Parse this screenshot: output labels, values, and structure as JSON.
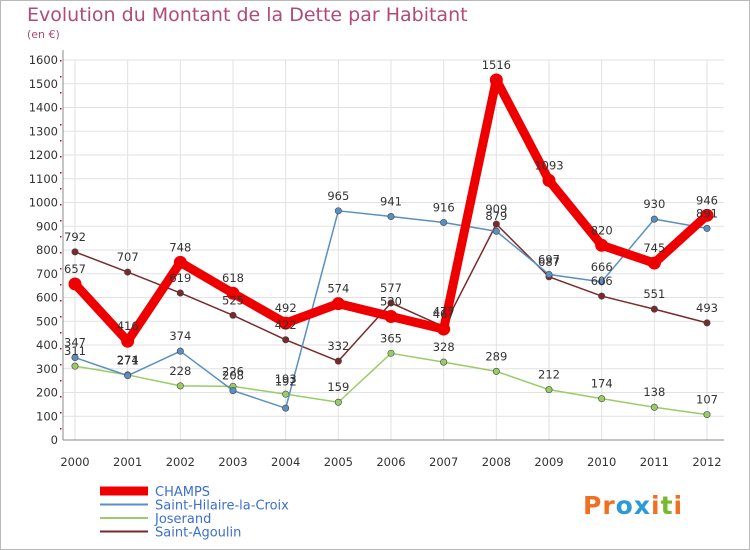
{
  "chart_data": {
    "type": "line",
    "title": "Evolution du Montant de la Dette par Habitant",
    "subtitle": "(en €)",
    "x": [
      "2000",
      "2001",
      "2002",
      "2003",
      "2004",
      "2005",
      "2006",
      "2007",
      "2008",
      "2009",
      "2010",
      "2011",
      "2012"
    ],
    "ylim": [
      0,
      1600
    ],
    "yticks": [
      0,
      100,
      200,
      300,
      400,
      500,
      600,
      700,
      800,
      900,
      1000,
      1100,
      1200,
      1300,
      1400,
      1500,
      1600
    ],
    "series": [
      {
        "name": "Saint-Agoulin",
        "color": "#7a2a2a",
        "values": [
          792,
          707,
          619,
          525,
          422,
          332,
          577,
          477,
          909,
          687,
          606,
          551,
          493
        ],
        "labels": [
          "792",
          "707",
          "619",
          "525",
          "422",
          "332",
          "577",
          "477",
          "909",
          "687",
          "606",
          "551",
          "493"
        ]
      },
      {
        "name": "Joserand",
        "color": "#99cc66",
        "values": [
          311,
          274,
          228,
          226,
          193,
          159,
          365,
          328,
          289,
          212,
          174,
          138,
          107
        ],
        "labels": [
          "311",
          "274",
          "228",
          "226",
          "193",
          "159",
          "365",
          "328",
          "289",
          "212",
          "174",
          "138",
          "107"
        ]
      },
      {
        "name": "Saint-Hilaire-la-Croix",
        "color": "#5a8fc2",
        "values": [
          347,
          271,
          374,
          208,
          134,
          965,
          941,
          916,
          879,
          697,
          666,
          930,
          891
        ],
        "labels": [
          "347",
          "271",
          "374",
          "208",
          "",
          "965",
          "941",
          "916",
          "879",
          "697",
          "666",
          "930",
          "891"
        ]
      },
      {
        "name": "CHAMPS",
        "color": "#ee0000",
        "values": [
          657,
          416,
          748,
          618,
          492,
          574,
          520,
          467,
          1516,
          1093,
          820,
          745,
          946
        ],
        "labels": [
          "657",
          "416",
          "748",
          "618",
          "492",
          "574",
          "520",
          "467",
          "1516",
          "1093",
          "820",
          "745",
          "946"
        ]
      }
    ],
    "extra_labels": [
      "192"
    ],
    "legend": [
      "CHAMPS",
      "Saint-Hilaire-la-Croix",
      "Joserand",
      "Saint-Agoulin"
    ],
    "legend_placement": "bottom-left"
  },
  "logo": {
    "letters": [
      "P",
      "r",
      "o",
      "x",
      "i",
      "t",
      "i"
    ],
    "colors": [
      "#f07020",
      "#f07020",
      "#2a9ad8",
      "#2a9ad8",
      "#f07020",
      "#7ab830",
      "#f07020"
    ]
  }
}
